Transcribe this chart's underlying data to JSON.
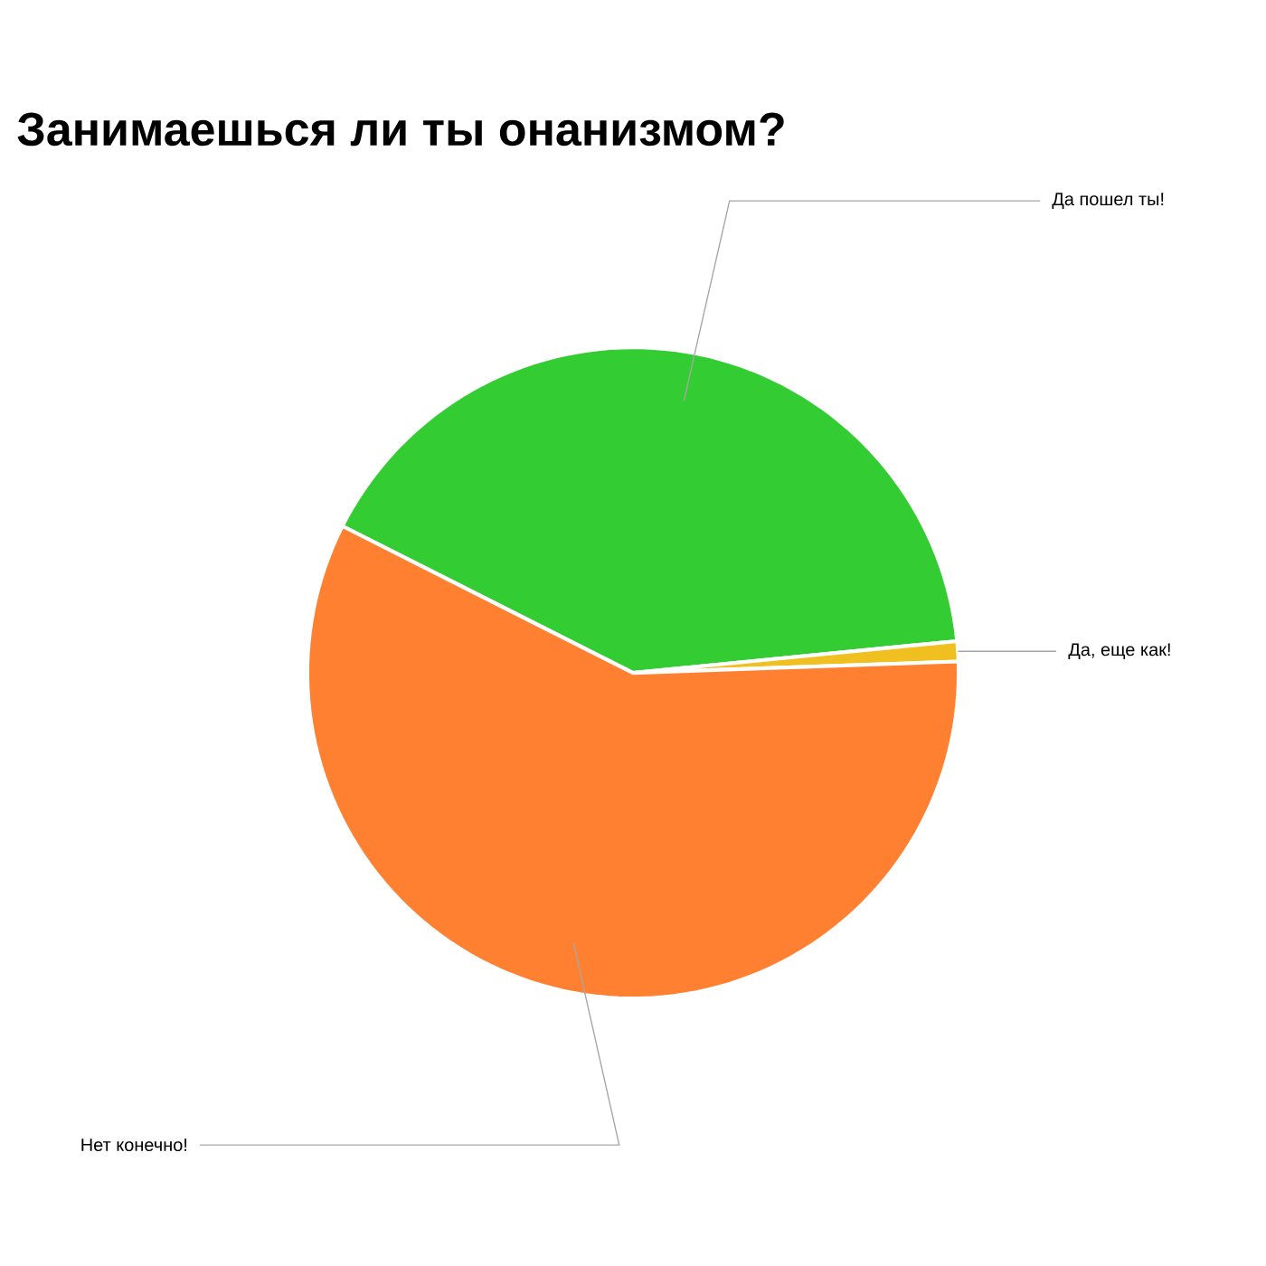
{
  "chart_data": {
    "type": "pie",
    "title": "Занимаешься ли ты онанизмом?",
    "categories": [
      "Да пошел ты!",
      "Да, еще как!",
      "Нет конечно!"
    ],
    "values": [
      41,
      1,
      58
    ],
    "colors": [
      "#33cc33",
      "#f0c020",
      "#ff8030"
    ]
  }
}
